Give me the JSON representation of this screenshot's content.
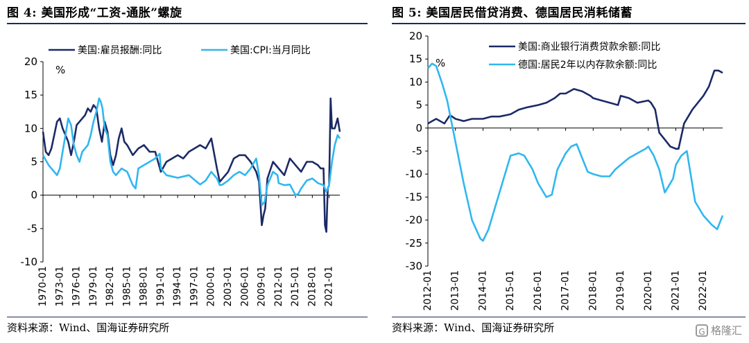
{
  "figures": {
    "left_title": "图 4:  美国形成“工资-通胀”螺旋",
    "right_title": "图 5:  美国居民借贷消费、德国居民消耗储蓄",
    "left_source": "资料来源：Wind、国海证券研究所",
    "right_source": "资料来源：Wind、国海证券研究所",
    "watermark": "格隆汇",
    "watermark_icon": "G"
  },
  "chart_data": [
    {
      "type": "line",
      "unit_label": "%",
      "ylim": [
        -10,
        20
      ],
      "yticks": [
        "20",
        "15",
        "10",
        "5",
        "0",
        "-5",
        "-10"
      ],
      "xticks": [
        "1970-01",
        "1973-01",
        "1976-01",
        "1979-01",
        "1982-01",
        "1985-01",
        "1988-01",
        "1991-01",
        "1994-01",
        "1997-01",
        "2000-01",
        "2003-01",
        "2006-01",
        "2009-01",
        "2012-01",
        "2015-01",
        "2018-01",
        "2021-01"
      ],
      "x_start": 1970.0,
      "x_end": 2022.9,
      "legend_position": "top-left",
      "series": [
        {
          "name": "美国:雇员报酬:同比",
          "color": "#1b2a66",
          "x": [
            1970,
            1970.5,
            1971,
            1971.5,
            1972,
            1972.5,
            1973,
            1973.5,
            1974,
            1974.5,
            1975,
            1975.5,
            1976,
            1976.5,
            1977,
            1977.5,
            1978,
            1978.5,
            1979,
            1979.5,
            1980,
            1980.5,
            1981,
            1981.5,
            1982,
            1982.5,
            1983,
            1983.5,
            1984,
            1984.5,
            1985,
            1986,
            1987,
            1988,
            1989,
            1990,
            1991,
            1992,
            1993,
            1994,
            1995,
            1996,
            1997,
            1998,
            1999,
            2000,
            2001,
            2001.5,
            2002,
            2003,
            2004,
            2005,
            2006,
            2007,
            2008,
            2008.5,
            2009,
            2009.3,
            2009.6,
            2010,
            2011,
            2012,
            2013,
            2014,
            2015,
            2016,
            2017,
            2018,
            2019,
            2019.5,
            2020,
            2020.25,
            2020.5,
            2020.75,
            2021,
            2021.25,
            2021.5,
            2022,
            2022.5,
            2022.9
          ],
          "y": [
            9.5,
            6.5,
            6.0,
            7.0,
            9.0,
            11.0,
            11.5,
            10.0,
            9.0,
            8.0,
            6.0,
            8.0,
            10.5,
            11.0,
            11.5,
            12.0,
            13.0,
            12.5,
            13.5,
            13.0,
            10.0,
            8.0,
            11.0,
            9.5,
            6.0,
            4.5,
            6.0,
            8.5,
            10.0,
            8.0,
            7.5,
            6.0,
            7.0,
            7.5,
            6.5,
            6.5,
            3.5,
            5.0,
            5.5,
            6.0,
            5.5,
            6.5,
            7.0,
            7.5,
            7.0,
            8.5,
            4.0,
            2.0,
            2.5,
            3.5,
            5.5,
            6.0,
            6.0,
            5.0,
            3.5,
            2.0,
            -4.5,
            -3.0,
            -2.0,
            2.5,
            5.0,
            4.0,
            3.0,
            5.5,
            4.5,
            3.5,
            5.0,
            5.0,
            4.5,
            4.0,
            4.0,
            -4.5,
            -5.5,
            1.0,
            1.5,
            14.5,
            10.0,
            10.0,
            11.5,
            9.5
          ]
        },
        {
          "name": "美国:CPI:当月同比",
          "color": "#2fb7f0",
          "x": [
            1970,
            1971,
            1971.5,
            1972,
            1972.5,
            1973,
            1973.5,
            1974,
            1974.5,
            1975,
            1975.5,
            1976,
            1976.5,
            1977,
            1978,
            1978.5,
            1979,
            1979.5,
            1980,
            1980.3,
            1980.6,
            1981,
            1981.5,
            1982,
            1982.5,
            1983,
            1984,
            1985,
            1986,
            1986.5,
            1987,
            1988,
            1989,
            1990,
            1990.8,
            1991,
            1992,
            1993,
            1994,
            1995,
            1996,
            1997,
            1998,
            1999,
            2000,
            2001,
            2001.5,
            2002,
            2003,
            2004,
            2005,
            2006,
            2007,
            2008,
            2008.5,
            2009,
            2009.5,
            2010,
            2011,
            2011.8,
            2012,
            2013,
            2014,
            2015,
            2015.5,
            2016,
            2017,
            2018,
            2019,
            2020,
            2020.5,
            2021,
            2021.5,
            2022,
            2022.5,
            2022.9
          ],
          "y": [
            6.0,
            4.5,
            4.0,
            3.5,
            3.0,
            4.0,
            6.5,
            9.0,
            11.5,
            10.5,
            7.5,
            6.0,
            5.0,
            6.5,
            7.5,
            9.0,
            11.0,
            12.5,
            14.5,
            14.0,
            13.0,
            10.0,
            9.0,
            5.0,
            3.5,
            3.0,
            4.0,
            3.5,
            1.5,
            1.0,
            4.0,
            4.5,
            5.0,
            5.5,
            6.2,
            4.0,
            3.0,
            2.8,
            2.6,
            2.8,
            3.0,
            2.3,
            1.6,
            2.2,
            3.5,
            2.5,
            1.5,
            1.6,
            2.2,
            3.0,
            3.5,
            3.0,
            4.0,
            5.5,
            3.0,
            -1.5,
            -1.0,
            1.5,
            3.5,
            3.0,
            1.8,
            1.5,
            1.6,
            0.0,
            0.2,
            1.0,
            2.2,
            2.5,
            1.8,
            1.5,
            0.5,
            1.5,
            5.0,
            7.5,
            9.0,
            8.5
          ]
        }
      ]
    },
    {
      "type": "line",
      "unit_label": "%",
      "ylim": [
        -30,
        20
      ],
      "yticks": [
        "20",
        "15",
        "10",
        "5",
        "0",
        "-5",
        "-10",
        "-15",
        "-20",
        "-25",
        "-30"
      ],
      "xticks": [
        "2012-01",
        "2013-01",
        "2014-01",
        "2015-01",
        "2016-01",
        "2017-01",
        "2018-01",
        "2019-01",
        "2020-01",
        "2021-01",
        "2022-01"
      ],
      "x_start": 2012.0,
      "x_end": 2022.7,
      "legend_position": "top-center",
      "series": [
        {
          "name": "美国:商业银行消费贷款余额:同比",
          "color": "#1b2a66",
          "x": [
            2012.0,
            2012.3,
            2012.6,
            2012.8,
            2013.0,
            2013.3,
            2013.6,
            2014.0,
            2014.3,
            2014.6,
            2015.0,
            2015.3,
            2015.6,
            2016.0,
            2016.3,
            2016.6,
            2016.8,
            2017.0,
            2017.3,
            2017.6,
            2017.9,
            2018.0,
            2018.3,
            2018.6,
            2018.9,
            2019.0,
            2019.3,
            2019.6,
            2020.0,
            2020.1,
            2020.25,
            2020.4,
            2020.6,
            2020.8,
            2021.0,
            2021.1,
            2021.3,
            2021.6,
            2022.0,
            2022.2,
            2022.4,
            2022.55,
            2022.7
          ],
          "y": [
            1.0,
            2.0,
            1.0,
            2.8,
            2.0,
            1.5,
            2.0,
            2.0,
            2.5,
            2.5,
            3.0,
            4.0,
            4.5,
            5.0,
            5.5,
            6.5,
            7.5,
            7.5,
            8.5,
            8.0,
            7.0,
            6.5,
            6.0,
            5.5,
            5.0,
            7.0,
            6.5,
            5.5,
            6.0,
            5.5,
            4.0,
            -1.0,
            -2.5,
            -4.0,
            -4.5,
            -4.5,
            1.0,
            4.0,
            7.0,
            9.0,
            12.5,
            12.5,
            12.0
          ]
        },
        {
          "name": "德国:居民2年以内存款余额:同比",
          "color": "#2fb7f0",
          "x": [
            2012.0,
            2012.15,
            2012.3,
            2012.5,
            2012.7,
            2013.0,
            2013.3,
            2013.6,
            2013.9,
            2014.0,
            2014.2,
            2014.5,
            2014.8,
            2015.0,
            2015.3,
            2015.5,
            2015.8,
            2016.0,
            2016.3,
            2016.5,
            2016.7,
            2017.0,
            2017.2,
            2017.4,
            2017.6,
            2017.8,
            2018.0,
            2018.3,
            2018.6,
            2018.8,
            2019.0,
            2019.3,
            2019.6,
            2019.9,
            2020.0,
            2020.2,
            2020.4,
            2020.6,
            2020.9,
            2021.0,
            2021.2,
            2021.4,
            2021.7,
            2022.0,
            2022.3,
            2022.5,
            2022.7
          ],
          "y": [
            13.0,
            14.0,
            13.5,
            10.0,
            6.0,
            -3.0,
            -12.0,
            -20.0,
            -24.0,
            -24.5,
            -22.0,
            -16.0,
            -10.0,
            -6.0,
            -5.5,
            -6.0,
            -9.0,
            -12.0,
            -15.0,
            -14.5,
            -9.0,
            -5.5,
            -4.0,
            -3.5,
            -6.5,
            -9.5,
            -10.0,
            -10.5,
            -10.5,
            -9.0,
            -8.0,
            -6.5,
            -5.5,
            -4.5,
            -4.0,
            -6.0,
            -9.0,
            -14.0,
            -11.0,
            -8.0,
            -6.0,
            -5.0,
            -16.0,
            -19.0,
            -21.0,
            -22.0,
            -19.0
          ]
        }
      ]
    }
  ]
}
